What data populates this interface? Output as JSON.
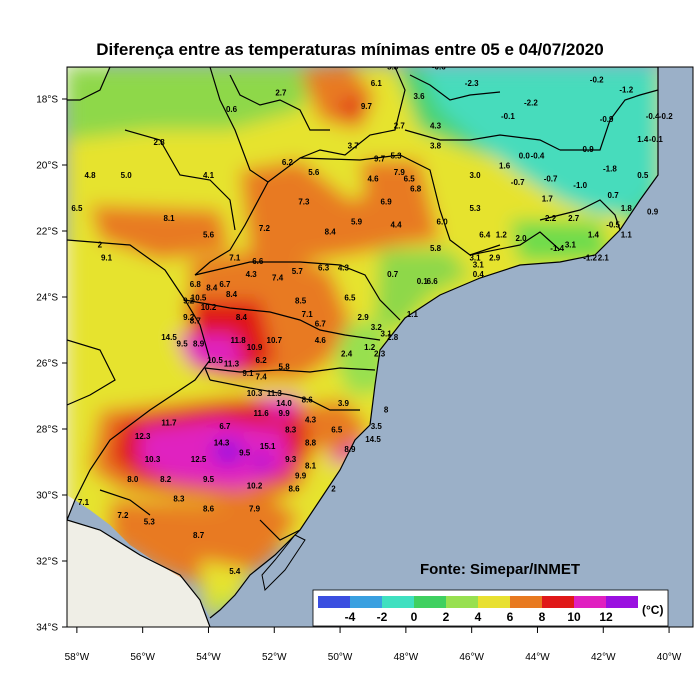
{
  "title": "Diferença entre as temperaturas mínimas entre 05 e 04/07/2020",
  "source": "Fonte: Simepar/INMET",
  "lat_ticks": [
    "18°S",
    "20°S",
    "22°S",
    "24°S",
    "26°S",
    "28°S",
    "30°S",
    "32°S",
    "34°S"
  ],
  "lon_ticks": [
    "58°W",
    "56°W",
    "54°W",
    "52°W",
    "50°W",
    "48°W",
    "46°W",
    "44°W",
    "42°W",
    "40°W"
  ],
  "colorbar": {
    "labels": [
      "-4",
      "-2",
      "0",
      "2",
      "4",
      "6",
      "8",
      "10",
      "12"
    ],
    "unit": "(°C)",
    "colors": [
      "#3b4fe0",
      "#3aa0e0",
      "#40e0c0",
      "#40d060",
      "#98e050",
      "#e8e030",
      "#e87a20",
      "#e01818",
      "#e020c0",
      "#9a10e0"
    ]
  },
  "colors": {
    "ocean": "#9bb0c8",
    "land_outside": "#efeee6",
    "border": "#000000"
  },
  "station_values": [
    {
      "v": "5.8",
      "lon": -48.4,
      "lat": -17.1
    },
    {
      "v": "-0.6",
      "lon": -47.0,
      "lat": -17.1
    },
    {
      "v": "6.1",
      "lon": -48.9,
      "lat": -17.6
    },
    {
      "v": "-2.3",
      "lon": -46.0,
      "lat": -17.6
    },
    {
      "v": "2.7",
      "lon": -51.8,
      "lat": -17.9
    },
    {
      "v": "3.6",
      "lon": -47.6,
      "lat": -18.0
    },
    {
      "v": "-0.2",
      "lon": -42.2,
      "lat": -17.5
    },
    {
      "v": "-1.2",
      "lon": -41.3,
      "lat": -17.8
    },
    {
      "v": "9.7",
      "lon": -49.2,
      "lat": -18.3
    },
    {
      "v": "-2.2",
      "lon": -44.2,
      "lat": -18.2
    },
    {
      "v": "0.6",
      "lon": -53.3,
      "lat": -18.4
    },
    {
      "v": "-0.1",
      "lon": -44.9,
      "lat": -18.6
    },
    {
      "v": "-0.9",
      "lon": -41.9,
      "lat": -18.7
    },
    {
      "v": "2.7",
      "lon": -48.2,
      "lat": -18.9
    },
    {
      "v": "4.3",
      "lon": -47.1,
      "lat": -18.9
    },
    {
      "v": "-0.4",
      "lon": -40.5,
      "lat": -18.6
    },
    {
      "v": "-0.2",
      "lon": -40.1,
      "lat": -18.6
    },
    {
      "v": "2.8",
      "lon": -55.5,
      "lat": -19.4
    },
    {
      "v": "3.7",
      "lon": -49.6,
      "lat": -19.5
    },
    {
      "v": "3.8",
      "lon": -47.1,
      "lat": -19.5
    },
    {
      "v": "-0.9",
      "lon": -42.5,
      "lat": -19.6
    },
    {
      "v": "1.4",
      "lon": -40.8,
      "lat": -19.3
    },
    {
      "v": "-0.1",
      "lon": -40.4,
      "lat": -19.3
    },
    {
      "v": "5.3",
      "lon": -48.3,
      "lat": -19.8
    },
    {
      "v": "9.7",
      "lon": -48.8,
      "lat": -19.9
    },
    {
      "v": "0.0",
      "lon": -44.4,
      "lat": -19.8
    },
    {
      "v": "-0.4",
      "lon": -44.0,
      "lat": -19.8
    },
    {
      "v": "6.2",
      "lon": -51.6,
      "lat": -20.0
    },
    {
      "v": "5.6",
      "lon": -50.8,
      "lat": -20.3
    },
    {
      "v": "7.9",
      "lon": -48.2,
      "lat": -20.3
    },
    {
      "v": "1.6",
      "lon": -45.0,
      "lat": -20.1
    },
    {
      "v": "-1.8",
      "lon": -41.8,
      "lat": -20.2
    },
    {
      "v": "4.8",
      "lon": -57.6,
      "lat": -20.4
    },
    {
      "v": "5.0",
      "lon": -56.5,
      "lat": -20.4
    },
    {
      "v": "4.1",
      "lon": -54.0,
      "lat": -20.4
    },
    {
      "v": "4.6",
      "lon": -49.0,
      "lat": -20.5
    },
    {
      "v": "6.5",
      "lon": -47.9,
      "lat": -20.5
    },
    {
      "v": "3.0",
      "lon": -45.9,
      "lat": -20.4
    },
    {
      "v": "-0.7",
      "lon": -44.6,
      "lat": -20.6
    },
    {
      "v": "-0.7",
      "lon": -43.6,
      "lat": -20.5
    },
    {
      "v": "-1.0",
      "lon": -42.7,
      "lat": -20.7
    },
    {
      "v": "0.5",
      "lon": -40.8,
      "lat": -20.4
    },
    {
      "v": "6.8",
      "lon": -47.7,
      "lat": -20.8
    },
    {
      "v": "0.7",
      "lon": -41.7,
      "lat": -21.0
    },
    {
      "v": "1.7",
      "lon": -43.7,
      "lat": -21.1
    },
    {
      "v": "7.3",
      "lon": -51.1,
      "lat": -21.2
    },
    {
      "v": "6.9",
      "lon": -48.6,
      "lat": -21.2
    },
    {
      "v": "6.5",
      "lon": -58.0,
      "lat": -21.4
    },
    {
      "v": "5.3",
      "lon": -45.9,
      "lat": -21.4
    },
    {
      "v": "1.8",
      "lon": -41.3,
      "lat": -21.4
    },
    {
      "v": "0.9",
      "lon": -40.5,
      "lat": -21.5
    },
    {
      "v": "8.1",
      "lon": -55.2,
      "lat": -21.7
    },
    {
      "v": "2.2",
      "lon": -43.6,
      "lat": -21.7
    },
    {
      "v": "2.7",
      "lon": -42.9,
      "lat": -21.7
    },
    {
      "v": "5.9",
      "lon": -49.5,
      "lat": -21.8
    },
    {
      "v": "4.4",
      "lon": -48.3,
      "lat": -21.9
    },
    {
      "v": "6.0",
      "lon": -46.9,
      "lat": -21.8
    },
    {
      "v": "-0.5",
      "lon": -41.7,
      "lat": -21.9
    },
    {
      "v": "7.2",
      "lon": -52.3,
      "lat": -22.0
    },
    {
      "v": "8.4",
      "lon": -50.3,
      "lat": -22.1
    },
    {
      "v": "5.6",
      "lon": -54.0,
      "lat": -22.2
    },
    {
      "v": "6.4",
      "lon": -45.6,
      "lat": -22.2
    },
    {
      "v": "1.2",
      "lon": -45.1,
      "lat": -22.2
    },
    {
      "v": "2.0",
      "lon": -44.5,
      "lat": -22.3
    },
    {
      "v": "1.4",
      "lon": -42.3,
      "lat": -22.2
    },
    {
      "v": "1.1",
      "lon": -41.3,
      "lat": -22.2
    },
    {
      "v": "2",
      "lon": -57.3,
      "lat": -22.5
    },
    {
      "v": "5.8",
      "lon": -47.1,
      "lat": -22.6
    },
    {
      "v": "-1.4",
      "lon": -43.4,
      "lat": -22.6
    },
    {
      "v": "3.1",
      "lon": -43.0,
      "lat": -22.5
    },
    {
      "v": "9.1",
      "lon": -57.1,
      "lat": -22.9
    },
    {
      "v": "7.1",
      "lon": -53.2,
      "lat": -22.9
    },
    {
      "v": "6.6",
      "lon": -52.5,
      "lat": -23.0
    },
    {
      "v": "6.3",
      "lon": -50.5,
      "lat": -23.2
    },
    {
      "v": "4.3",
      "lon": -49.9,
      "lat": -23.2
    },
    {
      "v": "3.1",
      "lon": -45.9,
      "lat": -22.9
    },
    {
      "v": "2.9",
      "lon": -45.3,
      "lat": -22.9
    },
    {
      "v": "-1.2",
      "lon": -42.4,
      "lat": -22.9
    },
    {
      "v": "2.1",
      "lon": -42.0,
      "lat": -22.9
    },
    {
      "v": "3.1",
      "lon": -45.8,
      "lat": -23.1
    },
    {
      "v": "0.4",
      "lon": -45.8,
      "lat": -23.4
    },
    {
      "v": "5.7",
      "lon": -51.3,
      "lat": -23.3
    },
    {
      "v": "7.4",
      "lon": -51.9,
      "lat": -23.5
    },
    {
      "v": "4.3",
      "lon": -52.7,
      "lat": -23.4
    },
    {
      "v": "0.7",
      "lon": -48.4,
      "lat": -23.4
    },
    {
      "v": "0.1",
      "lon": -47.5,
      "lat": -23.6
    },
    {
      "v": "6.6",
      "lon": -47.2,
      "lat": -23.6
    },
    {
      "v": "6.8",
      "lon": -54.4,
      "lat": -23.7
    },
    {
      "v": "6.7",
      "lon": -53.5,
      "lat": -23.7
    },
    {
      "v": "8.4",
      "lon": -53.9,
      "lat": -23.8
    },
    {
      "v": "8.4",
      "lon": -53.3,
      "lat": -24.0
    },
    {
      "v": "9.2",
      "lon": -54.6,
      "lat": -24.2
    },
    {
      "v": "10.2",
      "lon": -54.0,
      "lat": -24.4
    },
    {
      "v": "8.5",
      "lon": -51.2,
      "lat": -24.2
    },
    {
      "v": "6.5",
      "lon": -49.7,
      "lat": -24.1
    },
    {
      "v": "10.5",
      "lon": -54.3,
      "lat": -24.1
    },
    {
      "v": "7.1",
      "lon": -51.0,
      "lat": -24.6
    },
    {
      "v": "1.1",
      "lon": -47.8,
      "lat": -24.6
    },
    {
      "v": "9.2",
      "lon": -54.6,
      "lat": -24.7
    },
    {
      "v": "8.7",
      "lon": -54.4,
      "lat": -24.8
    },
    {
      "v": "8.4",
      "lon": -53.0,
      "lat": -24.7
    },
    {
      "v": "6.7",
      "lon": -50.6,
      "lat": -24.9
    },
    {
      "v": "2.9",
      "lon": -49.3,
      "lat": -24.7
    },
    {
      "v": "4.6",
      "lon": -50.6,
      "lat": -25.4
    },
    {
      "v": "3.2",
      "lon": -48.9,
      "lat": -25.0
    },
    {
      "v": "3.1",
      "lon": -48.6,
      "lat": -25.2
    },
    {
      "v": "2.8",
      "lon": -48.4,
      "lat": -25.3
    },
    {
      "v": "11.8",
      "lon": -53.1,
      "lat": -25.4
    },
    {
      "v": "10.7",
      "lon": -52.0,
      "lat": -25.4
    },
    {
      "v": "14.5",
      "lon": -55.2,
      "lat": -25.3
    },
    {
      "v": "9.5",
      "lon": -54.8,
      "lat": -25.5
    },
    {
      "v": "8.9",
      "lon": -54.3,
      "lat": -25.5
    },
    {
      "v": "10.9",
      "lon": -52.6,
      "lat": -25.6
    },
    {
      "v": "2.4",
      "lon": -49.8,
      "lat": -25.8
    },
    {
      "v": "1.2",
      "lon": -49.1,
      "lat": -25.6
    },
    {
      "v": "2.3",
      "lon": -48.8,
      "lat": -25.8
    },
    {
      "v": "10.5",
      "lon": -53.8,
      "lat": -26.0
    },
    {
      "v": "11.3",
      "lon": -53.3,
      "lat": -26.1
    },
    {
      "v": "6.2",
      "lon": -52.4,
      "lat": -26.0
    },
    {
      "v": "5.8",
      "lon": -51.7,
      "lat": -26.2
    },
    {
      "v": "9.1",
      "lon": -52.8,
      "lat": -26.4
    },
    {
      "v": "7.4",
      "lon": -52.4,
      "lat": -26.5
    },
    {
      "v": "10.3",
      "lon": -52.6,
      "lat": -27.0
    },
    {
      "v": "11.3",
      "lon": -52.0,
      "lat": -27.0
    },
    {
      "v": "8.6",
      "lon": -51.0,
      "lat": -27.2
    },
    {
      "v": "14.0",
      "lon": -51.7,
      "lat": -27.3
    },
    {
      "v": "11.6",
      "lon": -52.4,
      "lat": -27.6
    },
    {
      "v": "9.9",
      "lon": -51.7,
      "lat": -27.6
    },
    {
      "v": "3.9",
      "lon": -49.9,
      "lat": -27.3
    },
    {
      "v": "8",
      "lon": -48.6,
      "lat": -27.5
    },
    {
      "v": "4.3",
      "lon": -50.9,
      "lat": -27.8
    },
    {
      "v": "11.7",
      "lon": -55.2,
      "lat": -27.9
    },
    {
      "v": "6.7",
      "lon": -53.5,
      "lat": -28.0
    },
    {
      "v": "8.3",
      "lon": -51.5,
      "lat": -28.1
    },
    {
      "v": "6.5",
      "lon": -50.1,
      "lat": -28.1
    },
    {
      "v": "3.5",
      "lon": -48.9,
      "lat": -28.0
    },
    {
      "v": "12.3",
      "lon": -56.0,
      "lat": -28.3
    },
    {
      "v": "14.3",
      "lon": -53.6,
      "lat": -28.5
    },
    {
      "v": "15.1",
      "lon": -52.2,
      "lat": -28.6
    },
    {
      "v": "8.8",
      "lon": -50.9,
      "lat": -28.5
    },
    {
      "v": "14.5",
      "lon": -49.0,
      "lat": -28.4
    },
    {
      "v": "9.5",
      "lon": -52.9,
      "lat": -28.8
    },
    {
      "v": "9.3",
      "lon": -51.5,
      "lat": -29.0
    },
    {
      "v": "8.9",
      "lon": -49.7,
      "lat": -28.7
    },
    {
      "v": "10.3",
      "lon": -55.7,
      "lat": -29.0
    },
    {
      "v": "12.5",
      "lon": -54.3,
      "lat": -29.0
    },
    {
      "v": "8.1",
      "lon": -50.9,
      "lat": -29.2
    },
    {
      "v": "9.9",
      "lon": -51.2,
      "lat": -29.5
    },
    {
      "v": "8.0",
      "lon": -56.3,
      "lat": -29.6
    },
    {
      "v": "8.2",
      "lon": -55.3,
      "lat": -29.6
    },
    {
      "v": "9.5",
      "lon": -54.0,
      "lat": -29.6
    },
    {
      "v": "10.2",
      "lon": -52.6,
      "lat": -29.8
    },
    {
      "v": "8.6",
      "lon": -51.4,
      "lat": -29.9
    },
    {
      "v": "2",
      "lon": -50.2,
      "lat": -29.9
    },
    {
      "v": "8.3",
      "lon": -54.9,
      "lat": -30.2
    },
    {
      "v": "7.1",
      "lon": -57.8,
      "lat": -30.3
    },
    {
      "v": "8.6",
      "lon": -54.0,
      "lat": -30.5
    },
    {
      "v": "7.9",
      "lon": -52.6,
      "lat": -30.5
    },
    {
      "v": "7.2",
      "lon": -56.6,
      "lat": -30.7
    },
    {
      "v": "5.3",
      "lon": -55.8,
      "lat": -30.9
    },
    {
      "v": "8.7",
      "lon": -54.3,
      "lat": -31.3
    },
    {
      "v": "5.4",
      "lon": -53.2,
      "lat": -32.4
    }
  ]
}
